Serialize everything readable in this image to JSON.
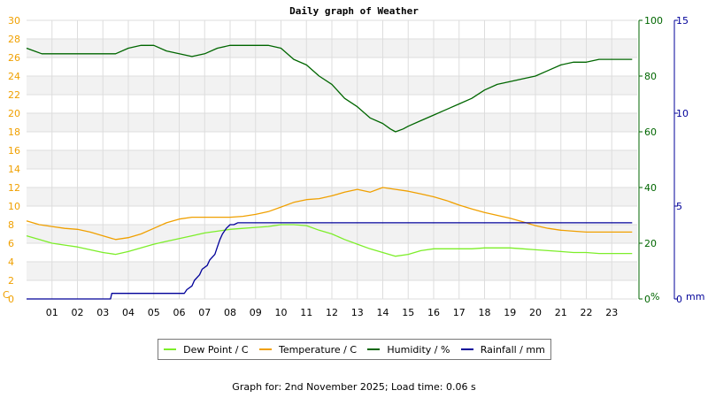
{
  "chart_data": {
    "type": "line",
    "title": "Daily graph of Weather",
    "x_ticks": [
      "01",
      "02",
      "03",
      "04",
      "05",
      "06",
      "07",
      "08",
      "09",
      "10",
      "11",
      "12",
      "13",
      "14",
      "15",
      "16",
      "17",
      "18",
      "19",
      "20",
      "21",
      "22",
      "23"
    ],
    "x_range_hours": [
      0,
      24
    ],
    "grid": true,
    "legend_position": "bottom",
    "axes": {
      "left": {
        "label": "C",
        "range": [
          0,
          30
        ],
        "ticks": [
          0,
          2,
          4,
          6,
          8,
          10,
          12,
          14,
          16,
          18,
          20,
          22,
          24,
          26,
          28,
          30
        ],
        "color": "#f0a000"
      },
      "right1": {
        "label": "%",
        "range": [
          0,
          100
        ],
        "ticks": [
          0,
          20,
          40,
          60,
          80,
          100
        ],
        "color": "#006600"
      },
      "right2": {
        "label": "mm",
        "range": [
          0,
          15
        ],
        "ticks": [
          0,
          5,
          10,
          15
        ],
        "color": "#000099"
      }
    },
    "series": [
      {
        "name": "Dew Point / C",
        "axis": "left",
        "color": "#7dee2a",
        "x": [
          0,
          0.5,
          1,
          1.5,
          2,
          2.5,
          3,
          3.5,
          4,
          4.5,
          5,
          5.5,
          6,
          6.5,
          7,
          7.5,
          8,
          8.5,
          9,
          9.5,
          10,
          10.5,
          11,
          11.5,
          12,
          12.5,
          13,
          13.5,
          14,
          14.5,
          15,
          15.5,
          16,
          16.5,
          17,
          17.5,
          18,
          18.5,
          19,
          19.5,
          20,
          20.5,
          21,
          21.5,
          22,
          22.5,
          23,
          23.8
        ],
        "values": [
          6.8,
          6.4,
          6.0,
          5.8,
          5.6,
          5.3,
          5.0,
          4.8,
          5.1,
          5.5,
          5.9,
          6.2,
          6.5,
          6.8,
          7.1,
          7.3,
          7.5,
          7.6,
          7.7,
          7.8,
          8.0,
          8.0,
          7.9,
          7.4,
          7.0,
          6.4,
          5.9,
          5.4,
          5.0,
          4.6,
          4.8,
          5.2,
          5.4,
          5.4,
          5.4,
          5.4,
          5.5,
          5.5,
          5.5,
          5.4,
          5.3,
          5.2,
          5.1,
          5.0,
          5.0,
          4.9,
          4.9,
          4.9
        ]
      },
      {
        "name": "Temperature / C",
        "axis": "left",
        "color": "#f0a000",
        "x": [
          0,
          0.5,
          1,
          1.5,
          2,
          2.5,
          3,
          3.5,
          4,
          4.5,
          5,
          5.5,
          6,
          6.5,
          7,
          7.5,
          8,
          8.5,
          9,
          9.5,
          10,
          10.5,
          11,
          11.5,
          12,
          12.5,
          13,
          13.5,
          14,
          14.5,
          15,
          15.5,
          16,
          16.5,
          17,
          17.5,
          18,
          18.5,
          19,
          19.5,
          20,
          20.5,
          21,
          21.5,
          22,
          22.5,
          23,
          23.8
        ],
        "values": [
          8.4,
          8.0,
          7.8,
          7.6,
          7.5,
          7.2,
          6.8,
          6.4,
          6.6,
          7.0,
          7.6,
          8.2,
          8.6,
          8.8,
          8.8,
          8.8,
          8.8,
          8.9,
          9.1,
          9.4,
          9.9,
          10.4,
          10.7,
          10.8,
          11.1,
          11.5,
          11.8,
          11.5,
          12.0,
          11.8,
          11.6,
          11.3,
          11.0,
          10.6,
          10.1,
          9.7,
          9.3,
          9.0,
          8.7,
          8.3,
          7.9,
          7.6,
          7.4,
          7.3,
          7.2,
          7.2,
          7.2,
          7.2
        ]
      },
      {
        "name": "Humidity / %",
        "axis": "right1",
        "color": "#006600",
        "x": [
          0,
          0.3,
          0.6,
          1,
          1.5,
          2,
          2.5,
          3,
          3.5,
          4,
          4.5,
          5,
          5.5,
          6,
          6.5,
          7,
          7.5,
          8,
          8.5,
          9,
          9.5,
          10,
          10.5,
          11,
          11.5,
          12,
          12.5,
          13,
          13.5,
          14,
          14.3,
          14.5,
          14.8,
          15,
          15.5,
          16,
          16.5,
          17,
          17.5,
          18,
          18.5,
          19,
          19.5,
          20,
          20.5,
          21,
          21.5,
          22,
          22.5,
          23,
          23.8
        ],
        "values": [
          90,
          89,
          88,
          88,
          88,
          88,
          88,
          88,
          88,
          90,
          91,
          91,
          89,
          88,
          87,
          88,
          90,
          91,
          91,
          91,
          91,
          90,
          86,
          84,
          80,
          77,
          72,
          69,
          65,
          63,
          61,
          60,
          61,
          62,
          64,
          66,
          68,
          70,
          72,
          75,
          77,
          78,
          79,
          80,
          82,
          84,
          85,
          85,
          86,
          86,
          86
        ]
      },
      {
        "name": "Rainfall / mm",
        "axis": "right2",
        "color": "#000099",
        "x": [
          0,
          3.3,
          3.35,
          6.2,
          6.3,
          6.5,
          6.6,
          6.8,
          6.9,
          7.1,
          7.2,
          7.4,
          7.5,
          7.6,
          7.7,
          7.85,
          8.0,
          8.15,
          8.3,
          10.0,
          23.8
        ],
        "values": [
          0,
          0,
          0.3,
          0.3,
          0.5,
          0.7,
          1.0,
          1.3,
          1.6,
          1.8,
          2.1,
          2.4,
          2.8,
          3.2,
          3.5,
          3.8,
          4.0,
          4.0,
          4.1,
          4.1,
          4.1
        ]
      }
    ]
  },
  "footer": "Graph for: 2nd November 2025; Load time: 0.06 s"
}
